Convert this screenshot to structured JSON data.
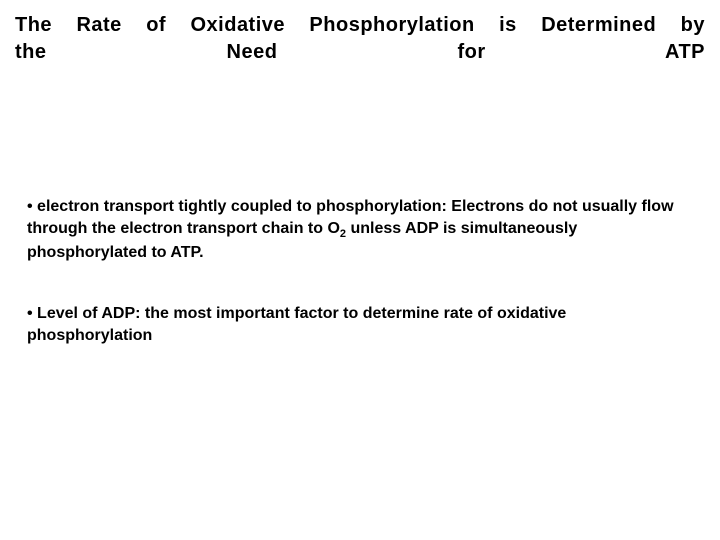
{
  "title": {
    "line1_words": [
      "The",
      "Rate",
      "of",
      "Oxidative",
      "Phosphorylation",
      "is",
      "Determined",
      "by"
    ],
    "line2": "the Need for ATP",
    "fontsize": 20,
    "color": "#000000"
  },
  "bullets": [
    {
      "prefix": "electron transport tightly coupled to phosphorylation: Electrons do not usually flow through the electron transport chain to O",
      "sub": "2",
      "suffix": " unless ADP is simultaneously phosphorylated to ATP."
    },
    {
      "prefix": "Level of ADP: the most important factor to determine rate of oxidative phosphorylation",
      "sub": "",
      "suffix": ""
    }
  ],
  "style": {
    "background_color": "#ffffff",
    "text_color": "#000000",
    "body_fontsize": 16,
    "bullet_spacing": 40
  }
}
